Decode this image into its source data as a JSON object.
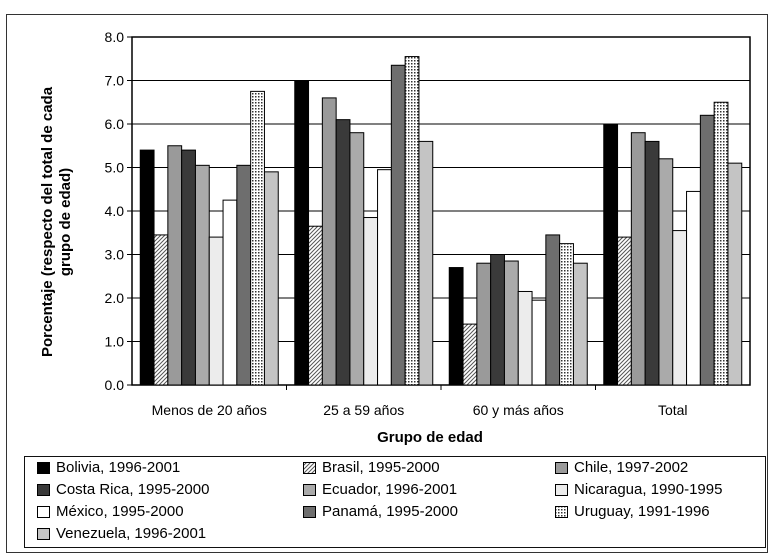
{
  "chart_data": {
    "type": "bar",
    "title": "",
    "xlabel": "Grupo de edad",
    "ylabel": "Porcentaje (respecto del total de cada grupo de edad)",
    "ylabel_lines": [
      "Porcentaje (respecto del total de cada",
      "grupo de edad)"
    ],
    "ylim": [
      0,
      8
    ],
    "yticks": [
      "0.0",
      "1.0",
      "2.0",
      "3.0",
      "4.0",
      "5.0",
      "6.0",
      "7.0",
      "8.0"
    ],
    "grid": "horizontal",
    "legend_position": "bottom",
    "categories": [
      "Menos de 20 años",
      "25 a 59 años",
      "60 y más años",
      "Total"
    ],
    "series": [
      {
        "name": "Bolivia, 1996-2001",
        "values": [
          5.4,
          7.0,
          2.7,
          6.0
        ],
        "fill": "#000000",
        "pattern": "solid"
      },
      {
        "name": "Brasil, 1995-2000",
        "values": [
          3.45,
          3.65,
          1.4,
          3.4
        ],
        "fill": "#ffffff",
        "pattern": "hatch"
      },
      {
        "name": "Chile, 1997-2002",
        "values": [
          5.5,
          6.6,
          2.8,
          5.8
        ],
        "fill": "#9a9a9a",
        "pattern": "solid"
      },
      {
        "name": "Costa Rica, 1995-2000",
        "values": [
          5.4,
          6.1,
          3.0,
          5.6
        ],
        "fill": "#3a3a3a",
        "pattern": "solid"
      },
      {
        "name": "Ecuador, 1996-2001",
        "values": [
          5.05,
          5.8,
          2.85,
          5.2
        ],
        "fill": "#aaaaaa",
        "pattern": "solid"
      },
      {
        "name": "Nicaragua, 1990-1995",
        "values": [
          3.4,
          3.85,
          2.15,
          3.55
        ],
        "fill": "#ececec",
        "pattern": "solid"
      },
      {
        "name": "México, 1995-2000",
        "values": [
          4.25,
          4.95,
          1.95,
          4.45
        ],
        "fill": "#ffffff",
        "pattern": "solid"
      },
      {
        "name": "Panamá, 1995-2000",
        "values": [
          5.05,
          7.35,
          3.45,
          6.2
        ],
        "fill": "#6e6e6e",
        "pattern": "solid"
      },
      {
        "name": "Uruguay, 1991-1996",
        "values": [
          6.75,
          7.55,
          3.25,
          6.5
        ],
        "fill": "#ffffff",
        "pattern": "dots"
      },
      {
        "name": "Venezuela, 1996-2001",
        "values": [
          4.9,
          5.6,
          2.8,
          5.1
        ],
        "fill": "#c4c4c4",
        "pattern": "solid"
      }
    ]
  }
}
